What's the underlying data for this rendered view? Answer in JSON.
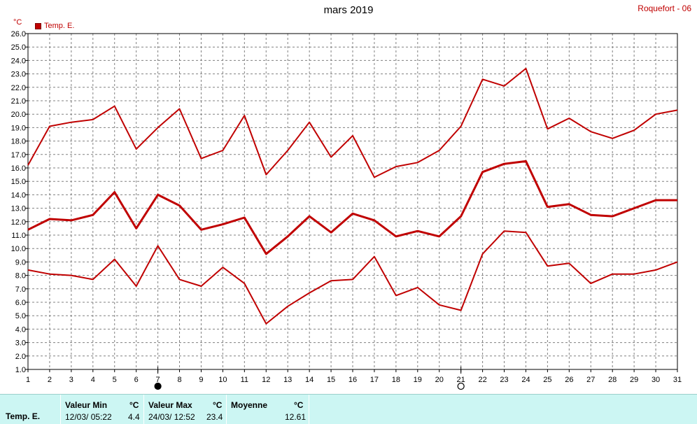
{
  "header": {
    "title": "mars 2019",
    "station": "Roquefort - 06",
    "unit": "°C",
    "legend_label": "Temp. E."
  },
  "chart_data": {
    "type": "line",
    "title": "mars 2019",
    "ylabel": "°C",
    "ylim": [
      1.0,
      26.0
    ],
    "ytick_step": 1.0,
    "y_ticks": [
      "1.0",
      "2.0",
      "3.0",
      "4.0",
      "5.0",
      "6.0",
      "7.0",
      "8.0",
      "9.0",
      "10.0",
      "11.0",
      "12.0",
      "13.0",
      "14.0",
      "15.0",
      "16.0",
      "17.0",
      "18.0",
      "19.0",
      "20.0",
      "21.0",
      "22.0",
      "23.0",
      "24.0",
      "25.0",
      "26.0"
    ],
    "x": [
      1,
      2,
      3,
      4,
      5,
      6,
      7,
      8,
      9,
      10,
      11,
      12,
      13,
      14,
      15,
      16,
      17,
      18,
      19,
      20,
      21,
      22,
      23,
      24,
      25,
      26,
      27,
      28,
      29,
      30,
      31
    ],
    "grid": true,
    "legend_position": "top-left",
    "line_color": "#c00000",
    "series": [
      {
        "name": "Temp. E.",
        "role": "max",
        "values": [
          16.2,
          19.1,
          19.4,
          19.6,
          20.6,
          17.4,
          19.0,
          20.4,
          16.7,
          17.3,
          19.9,
          15.5,
          17.3,
          19.4,
          16.8,
          18.4,
          15.3,
          16.1,
          16.4,
          17.3,
          19.1,
          22.6,
          22.1,
          23.4,
          18.9,
          19.7,
          18.7,
          18.2,
          18.8,
          20.0,
          20.3
        ]
      },
      {
        "role": "mean",
        "values": [
          11.4,
          12.2,
          12.1,
          12.5,
          14.2,
          11.5,
          14.0,
          13.2,
          11.4,
          11.8,
          12.3,
          9.6,
          10.9,
          12.4,
          11.2,
          12.6,
          12.1,
          10.9,
          11.3,
          10.9,
          12.4,
          15.7,
          16.3,
          16.5,
          13.1,
          13.3,
          12.5,
          12.4,
          13.0,
          13.6,
          13.6
        ]
      },
      {
        "role": "min",
        "values": [
          8.4,
          8.1,
          8.0,
          7.7,
          9.2,
          7.2,
          10.2,
          7.7,
          7.2,
          8.6,
          7.4,
          4.4,
          5.7,
          6.7,
          7.6,
          7.7,
          9.4,
          6.5,
          7.1,
          5.8,
          5.4,
          9.6,
          11.3,
          11.2,
          8.7,
          8.9,
          7.4,
          8.1,
          8.1,
          8.4,
          9.0
        ]
      }
    ],
    "moon_phases": [
      {
        "day": 7,
        "phase": "new-moon"
      },
      {
        "day": 21,
        "phase": "full-moon"
      }
    ]
  },
  "stats": {
    "series_label": "Temp. E.",
    "min": {
      "header": "Valeur Min",
      "unit": "°C",
      "date": "12/03/  05:22",
      "value": "4.4"
    },
    "max": {
      "header": "Valeur Max",
      "unit": "°C",
      "date": "24/03/  12:52",
      "value": "23.4"
    },
    "mean": {
      "header": "Moyenne",
      "unit": "°C",
      "value": "12.61"
    }
  }
}
